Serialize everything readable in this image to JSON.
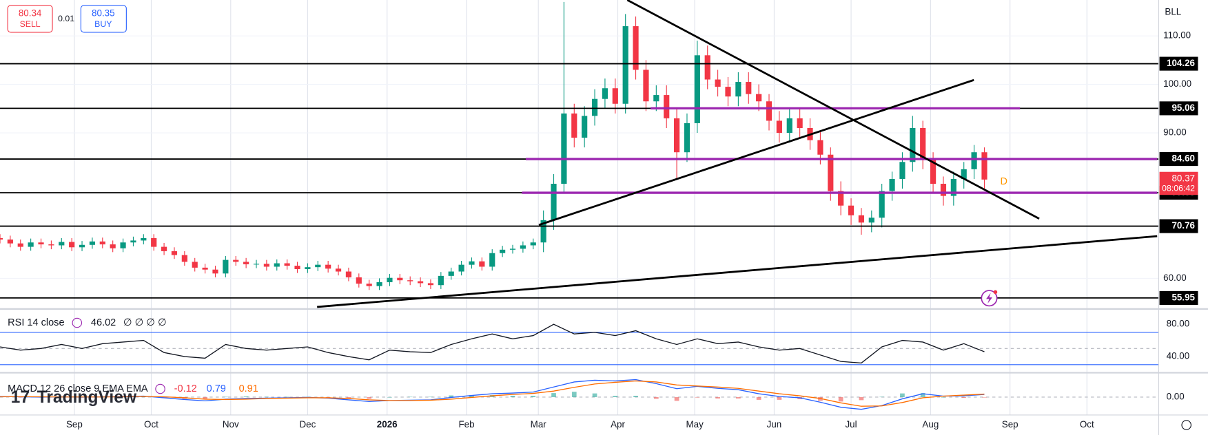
{
  "toolbar": {
    "sell": {
      "value": 80.34,
      "label": "SELL"
    },
    "spread": 0.01,
    "buy": {
      "value": 80.35,
      "label": "BUY"
    },
    "branding": "TradingView"
  },
  "chart_data": [
    {
      "type": "candlestick",
      "symbol": "BLL",
      "x": [
        0,
        4,
        8,
        12,
        16,
        20,
        24,
        28,
        32,
        36,
        40,
        44,
        48,
        52,
        56,
        60,
        64,
        68,
        72,
        76,
        80,
        84,
        88,
        92,
        96,
        100,
        104,
        108,
        112,
        116,
        120,
        124,
        128,
        132,
        136,
        140,
        144,
        148,
        152,
        156,
        160,
        164,
        168,
        172,
        176,
        180,
        184,
        188,
        192,
        196,
        200,
        204,
        208,
        212,
        216,
        220,
        224,
        228,
        232,
        236,
        240,
        244,
        248,
        252,
        256,
        260,
        264,
        268,
        272,
        276,
        280,
        284,
        288,
        292,
        296,
        300,
        304,
        308,
        312,
        316,
        320,
        324,
        328,
        332,
        336,
        340,
        344,
        348,
        352,
        356,
        360,
        364,
        368,
        372,
        376,
        380,
        384
      ],
      "open": [
        68.3,
        68.0,
        67.2,
        66.5,
        67.4,
        67.0,
        66.8,
        67.5,
        66.4,
        66.9,
        67.6,
        67.0,
        66.2,
        67.4,
        67.8,
        68.3,
        66.5,
        65.6,
        64.8,
        63.4,
        62.2,
        61.8,
        61.0,
        63.8,
        63.4,
        62.9,
        63.0,
        62.4,
        63.1,
        62.6,
        61.9,
        62.3,
        62.8,
        62.0,
        61.4,
        60.2,
        58.9,
        58.4,
        59.2,
        60.1,
        59.6,
        59.4,
        59.0,
        58.6,
        60.5,
        61.4,
        62.8,
        63.5,
        62.4,
        65.2,
        65.9,
        66.1,
        66.8,
        67.4,
        72.0,
        79.5,
        94.0,
        89.0,
        93.5,
        97.0,
        99.2,
        96.0,
        112.0,
        103.0,
        96.5,
        97.8,
        93.0,
        86.0,
        92.0,
        106.0,
        101.0,
        99.5,
        97.5,
        100.5,
        98.0,
        96.5,
        92.5,
        90.0,
        93.0,
        91.0,
        88.5,
        85.5,
        78.0,
        75.0,
        73.0,
        71.5,
        72.5,
        78.0,
        80.5,
        84.0,
        91.0,
        84.5,
        79.5,
        77.0,
        80.5,
        82.5,
        86.0
      ],
      "high": [
        69.1,
        68.8,
        68.0,
        68.2,
        68.2,
        67.8,
        68.3,
        68.3,
        67.7,
        68.4,
        68.4,
        67.8,
        68.2,
        68.6,
        69.1,
        69.1,
        67.3,
        66.4,
        65.6,
        64.2,
        63.0,
        62.6,
        64.6,
        64.6,
        64.2,
        63.8,
        63.8,
        63.9,
        63.9,
        63.4,
        63.1,
        63.6,
        63.6,
        62.8,
        62.2,
        61.0,
        59.7,
        60.0,
        60.9,
        60.9,
        60.4,
        60.2,
        59.8,
        61.3,
        62.2,
        63.6,
        64.3,
        64.3,
        66.0,
        66.7,
        66.9,
        67.6,
        68.2,
        74.0,
        81.5,
        117.0,
        96.0,
        95.5,
        99.0,
        101.2,
        101.2,
        114.5,
        114.0,
        105.0,
        99.8,
        99.8,
        95.0,
        94.0,
        109.0,
        108.0,
        103.0,
        101.5,
        102.5,
        102.5,
        100.0,
        98.0,
        94.5,
        95.0,
        95.0,
        93.0,
        90.5,
        87.0,
        80.0,
        76.5,
        74.5,
        74.0,
        79.5,
        82.0,
        86.0,
        93.5,
        92.5,
        86.0,
        81.0,
        82.0,
        84.0,
        87.5,
        87.0
      ],
      "low": [
        67.2,
        66.4,
        65.7,
        65.7,
        66.2,
        66.0,
        66.0,
        65.6,
        65.6,
        66.1,
        66.2,
        65.4,
        65.4,
        66.6,
        67.0,
        65.7,
        64.8,
        64.0,
        62.6,
        61.4,
        61.0,
        60.2,
        60.2,
        62.6,
        62.1,
        62.1,
        61.6,
        61.6,
        61.8,
        61.1,
        61.1,
        61.5,
        61.2,
        60.6,
        59.4,
        58.1,
        57.6,
        57.6,
        58.4,
        58.8,
        58.6,
        58.2,
        57.8,
        57.8,
        59.7,
        60.6,
        62.0,
        61.6,
        61.6,
        64.4,
        65.1,
        65.3,
        66.0,
        65.4,
        70.0,
        77.5,
        87.0,
        87.0,
        91.5,
        95.0,
        94.0,
        94.0,
        101.0,
        94.5,
        94.5,
        91.0,
        80.5,
        84.0,
        90.0,
        99.0,
        97.5,
        95.5,
        95.5,
        96.0,
        94.5,
        90.5,
        88.0,
        88.0,
        89.0,
        86.5,
        83.5,
        76.0,
        73.0,
        71.0,
        69.0,
        69.5,
        70.5,
        76.0,
        78.5,
        82.0,
        82.5,
        77.5,
        75.0,
        75.0,
        78.5,
        80.5,
        78.4
      ],
      "close": [
        68.0,
        67.2,
        66.5,
        67.4,
        67.0,
        66.8,
        67.5,
        66.4,
        66.9,
        67.6,
        67.0,
        66.2,
        67.4,
        67.8,
        68.3,
        66.5,
        65.6,
        64.8,
        63.4,
        62.2,
        61.8,
        61.0,
        63.8,
        63.4,
        62.9,
        63.0,
        62.4,
        63.1,
        62.6,
        61.9,
        62.3,
        62.8,
        62.0,
        61.4,
        60.2,
        58.9,
        58.4,
        59.2,
        60.1,
        59.6,
        59.4,
        59.0,
        58.6,
        60.5,
        61.4,
        62.8,
        63.5,
        62.4,
        65.2,
        65.9,
        66.1,
        66.8,
        67.4,
        72.0,
        79.5,
        94.0,
        89.0,
        93.5,
        97.0,
        99.2,
        96.0,
        112.0,
        103.0,
        96.5,
        97.8,
        93.0,
        86.0,
        92.0,
        106.0,
        101.0,
        99.5,
        97.5,
        100.5,
        98.0,
        96.5,
        92.5,
        90.0,
        93.0,
        91.0,
        88.5,
        85.5,
        78.0,
        75.0,
        73.0,
        71.5,
        72.5,
        78.0,
        80.5,
        84.0,
        91.0,
        84.5,
        79.5,
        77.0,
        80.5,
        82.5,
        86.0,
        80.37
      ],
      "up_color": "#089981",
      "down_color": "#f23645",
      "xlim": [
        0,
        452
      ],
      "xticks": [
        {
          "value": 29,
          "label": "Sep"
        },
        {
          "value": 59,
          "label": "Oct"
        },
        {
          "value": 90,
          "label": "Nov"
        },
        {
          "value": 120,
          "label": "Dec"
        },
        {
          "value": 151,
          "label": "2026"
        },
        {
          "value": 182,
          "label": "Feb"
        },
        {
          "value": 210,
          "label": "Mar"
        },
        {
          "value": 241,
          "label": "Apr"
        },
        {
          "value": 271,
          "label": "May"
        },
        {
          "value": 302,
          "label": "Jun"
        },
        {
          "value": 332,
          "label": "Jul"
        },
        {
          "value": 363,
          "label": "Aug"
        },
        {
          "value": 394,
          "label": "Sep"
        },
        {
          "value": 424,
          "label": "Oct"
        }
      ],
      "ylim": [
        54,
        117.4
      ],
      "yticks": [
        {
          "value": 110,
          "label": "110.00"
        },
        {
          "value": 100,
          "label": "100.00"
        },
        {
          "value": 90,
          "label": "90.00"
        },
        {
          "value": 60,
          "label": "60.00"
        }
      ],
      "grid": true,
      "levels": [
        104.26,
        95.06,
        {
          "value": 84.6,
          "label": "84.60"
        },
        77.65,
        70.76,
        55.95
      ],
      "zones": [
        {
          "value": 95.06,
          "x": [
            253.8,
            397.9
          ]
        },
        {
          "value": 84.6,
          "x": [
            205.1,
            451.4
          ]
        },
        {
          "value": 77.65,
          "x": [
            203.6,
            451.4
          ]
        }
      ],
      "zone_color": "#9c27b0",
      "trendlines": [
        {
          "x": [
            244.7,
            405.4
          ],
          "y": [
            117.4,
            72.3
          ]
        },
        {
          "x": [
            210.2,
            379.9
          ],
          "y": [
            71.0,
            100.9
          ]
        },
        {
          "x": [
            123.7,
            451.4
          ],
          "y": [
            54.1,
            68.7
          ]
        }
      ],
      "last_price": 80.37,
      "countdown": "08:06:42",
      "marker": "D"
    },
    {
      "type": "line",
      "title": "RSI 14 close",
      "inputs": "∅ ∅ ∅ ∅",
      "x": [
        0,
        8,
        16,
        24,
        32,
        40,
        48,
        56,
        64,
        72,
        80,
        88,
        96,
        104,
        112,
        120,
        128,
        136,
        144,
        152,
        160,
        168,
        176,
        184,
        192,
        200,
        208,
        216,
        224,
        232,
        240,
        248,
        256,
        264,
        272,
        280,
        288,
        296,
        304,
        312,
        320,
        328,
        336,
        344,
        352,
        360,
        368,
        376,
        384
      ],
      "series": [
        {
          "name": "RSI",
          "color": "#131722",
          "values": [
            52,
            48,
            50,
            55,
            50,
            56,
            58,
            60,
            45,
            40,
            38,
            55,
            50,
            48,
            50,
            52,
            45,
            40,
            36,
            48,
            46,
            45,
            55,
            62,
            68,
            62,
            66,
            80,
            68,
            70,
            66,
            72,
            62,
            55,
            62,
            56,
            58,
            52,
            48,
            50,
            42,
            34,
            32,
            52,
            60,
            58,
            48,
            56,
            46.02
          ]
        }
      ],
      "bands": [
        30,
        70
      ],
      "band_color": "#2962ff",
      "midline": 50,
      "ylim": [
        20,
        98
      ],
      "yticks": [
        {
          "value": 80,
          "label": "80.00"
        },
        {
          "value": 40,
          "label": "40.00"
        }
      ]
    },
    {
      "type": "macd",
      "title": "MACD 12 26 close 9 EMA EMA",
      "x": [
        0,
        8,
        16,
        24,
        32,
        40,
        48,
        56,
        64,
        72,
        80,
        88,
        96,
        104,
        112,
        120,
        128,
        136,
        144,
        152,
        160,
        168,
        176,
        184,
        192,
        200,
        208,
        216,
        224,
        232,
        240,
        248,
        256,
        264,
        272,
        280,
        288,
        296,
        304,
        312,
        320,
        328,
        336,
        344,
        352,
        360,
        368,
        376,
        384
      ],
      "series": [
        {
          "name": "Histogram",
          "kind": "bar",
          "color": "#f23645",
          "up_color": "#26a69a",
          "down_color": "#ef5350",
          "values": [
            0.1,
            -0.05,
            -0.1,
            0.05,
            -0.05,
            0.05,
            0.1,
            0.1,
            -0.3,
            -0.5,
            -0.5,
            0.1,
            0.2,
            0.1,
            0.1,
            0.1,
            -0.1,
            -0.4,
            -0.5,
            0,
            0.1,
            0.1,
            0.5,
            0.6,
            0.6,
            0.4,
            0.4,
            1.2,
            1.6,
            1.1,
            0.4,
            0.4,
            -0.5,
            -1.1,
            -0.1,
            -0.4,
            -0.4,
            -0.8,
            -0.8,
            -0.6,
            -1.1,
            -1.3,
            -0.9,
            0.1,
            1.1,
            1.2,
            0,
            -0.2,
            -0.12
          ]
        },
        {
          "name": "MACD",
          "kind": "line",
          "color": "#2962ff",
          "values": [
            0.2,
            0.1,
            0,
            0.1,
            0,
            0.1,
            0.2,
            0.3,
            -0.2,
            -0.7,
            -1.1,
            -0.6,
            -0.4,
            -0.3,
            -0.2,
            -0.1,
            -0.3,
            -0.8,
            -1.3,
            -1.0,
            -0.9,
            -0.8,
            -0.1,
            0.5,
            1.0,
            1.2,
            1.5,
            3.0,
            4.5,
            5.0,
            4.8,
            5.2,
            4.0,
            2.5,
            3.2,
            2.6,
            2.2,
            1.0,
            0.2,
            -0.2,
            -1.5,
            -3.0,
            -3.6,
            -2.5,
            -0.5,
            1.0,
            0.3,
            0.4,
            0.79
          ]
        },
        {
          "name": "Signal",
          "kind": "line",
          "color": "#ff6d00",
          "values": [
            0.1,
            0.15,
            0.1,
            0.05,
            0.05,
            0.05,
            0.1,
            0.2,
            0.1,
            -0.2,
            -0.6,
            -0.7,
            -0.6,
            -0.4,
            -0.3,
            -0.2,
            -0.2,
            -0.4,
            -0.8,
            -1.0,
            -1.0,
            -0.9,
            -0.6,
            -0.1,
            0.4,
            0.8,
            1.1,
            1.8,
            2.9,
            3.9,
            4.4,
            4.8,
            4.5,
            3.6,
            3.3,
            3.0,
            2.6,
            1.8,
            1.0,
            0.4,
            -0.4,
            -1.7,
            -2.7,
            -2.6,
            -1.6,
            -0.2,
            0.3,
            0.6,
            0.91
          ]
        }
      ],
      "ylim": [
        -5.3,
        7
      ],
      "yticks": [
        {
          "value": 0,
          "label": "0.00"
        }
      ]
    }
  ]
}
